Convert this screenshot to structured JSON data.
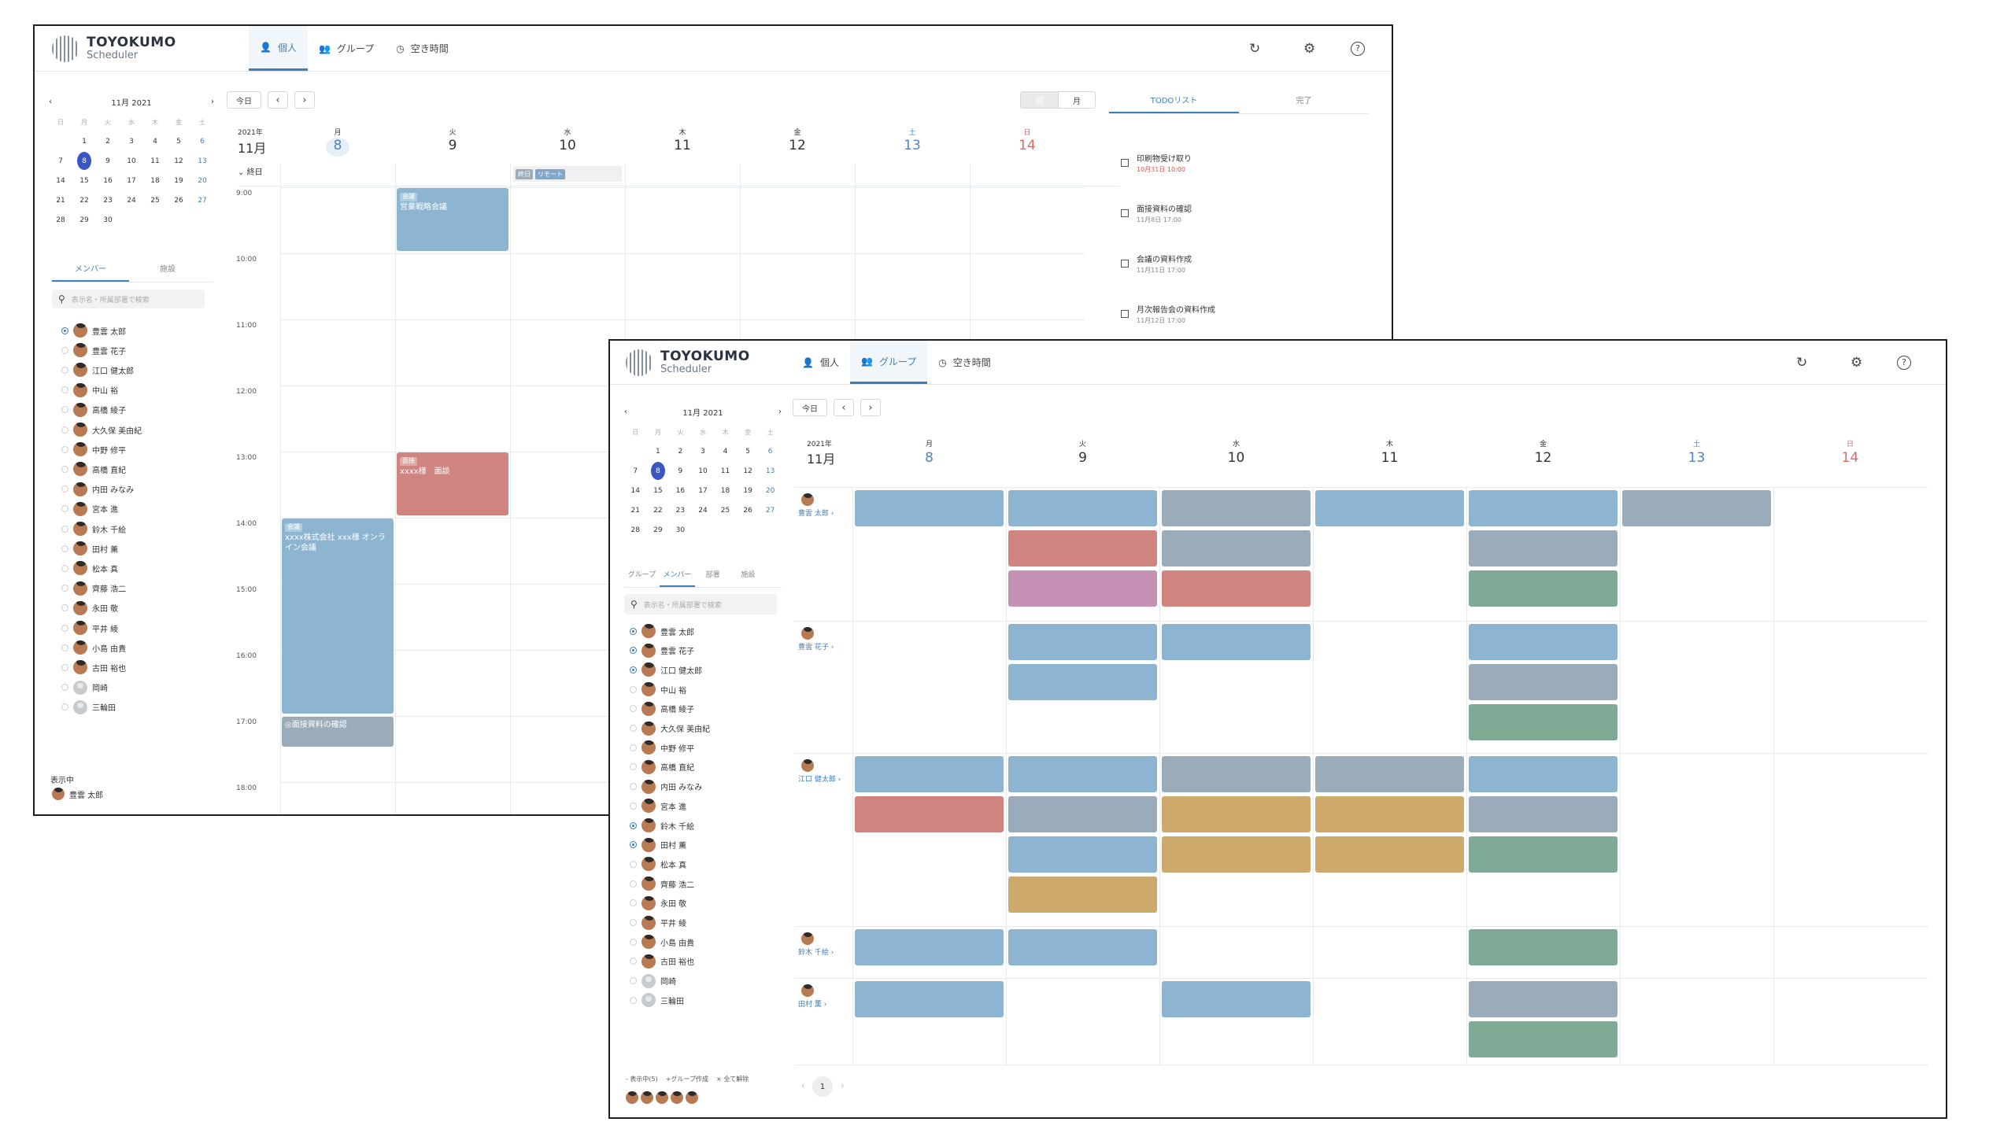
{
  "w1": {
    "logo": {
      "t1": "TOYOKUMO",
      "t2": "Scheduler"
    },
    "nav": [
      {
        "label": "個人"
      },
      {
        "label": "グループ"
      },
      {
        "label": "空き時間"
      }
    ],
    "month": "11月 2021",
    "weekdays": [
      "日",
      "月",
      "火",
      "水",
      "木",
      "金",
      "土"
    ],
    "days": [
      [
        "",
        "1",
        "2",
        "3",
        "4",
        "5",
        "6"
      ],
      [
        "7",
        "8",
        "9",
        "10",
        "11",
        "12",
        "13"
      ],
      [
        "14",
        "15",
        "16",
        "17",
        "18",
        "19",
        "20"
      ],
      [
        "21",
        "22",
        "23",
        "24",
        "25",
        "26",
        "27"
      ],
      [
        "28",
        "29",
        "30",
        "",
        "",
        "",
        ""
      ]
    ],
    "subtabs": [
      "メンバー",
      "施設"
    ],
    "search_placeholder": "表示名・所属部署で検索",
    "members": [
      "豊雲 太郎",
      "豊雲 花子",
      "江口 健太郎",
      "中山 裕",
      "高橋 綾子",
      "大久保 美由紀",
      "中野 修平",
      "高橋 直紀",
      "内田 みなみ",
      "宮本 進",
      "鈴木 千絵",
      "田村 薫",
      "松本 真",
      "齊藤 浩二",
      "永田 敬",
      "平井 綾",
      "小島 由貴",
      "古田 裕也",
      "岡崎",
      "三輪田"
    ],
    "showing_label": "表示中",
    "showing_member": "豊雲 太郎",
    "today": "今日",
    "week": "週",
    "monthbtn": "月",
    "year": "2021年",
    "mon": "11月",
    "allday": "終日",
    "cols": [
      {
        "w": "月",
        "d": "8"
      },
      {
        "w": "火",
        "d": "9"
      },
      {
        "w": "水",
        "d": "10"
      },
      {
        "w": "木",
        "d": "11"
      },
      {
        "w": "金",
        "d": "12"
      },
      {
        "w": "土",
        "d": "13"
      },
      {
        "w": "日",
        "d": "14"
      }
    ],
    "times": [
      "9:00",
      "10:00",
      "11:00",
      "12:00",
      "13:00",
      "14:00",
      "15:00",
      "16:00",
      "17:00",
      "18:00"
    ],
    "allday_tags": [
      "終日",
      "リモート"
    ],
    "events": [
      {
        "tag": "会議",
        "title": "営業戦略会議"
      },
      {
        "tag": "面接",
        "title": "xxxx様　面談"
      },
      {
        "tag": "会議",
        "title": "xxxx株式会社 xxx様 オンライン会議"
      },
      {
        "tag": "",
        "title": "◎面接資料の確認"
      }
    ],
    "todo_tabs": [
      "TODOリスト",
      "完了"
    ],
    "todos": [
      {
        "t": "印刷物受け取り",
        "d": "10月31日 10:00"
      },
      {
        "t": "面接資料の確認",
        "d": "11月8日 17:00"
      },
      {
        "t": "会議の資料作成",
        "d": "11月11日 17:00"
      },
      {
        "t": "月次報告会の資料作成",
        "d": "11月12日 17:00"
      }
    ]
  },
  "w2": {
    "logo": {
      "t1": "TOYOKUMO",
      "t2": "Scheduler"
    },
    "nav": [
      {
        "label": "個人"
      },
      {
        "label": "グループ"
      },
      {
        "label": "空き時間"
      }
    ],
    "month": "11月 2021",
    "weekdays": [
      "日",
      "月",
      "火",
      "水",
      "木",
      "金",
      "土"
    ],
    "days": [
      [
        "",
        "1",
        "2",
        "3",
        "4",
        "5",
        "6"
      ],
      [
        "7",
        "8",
        "9",
        "10",
        "11",
        "12",
        "13"
      ],
      [
        "14",
        "15",
        "16",
        "17",
        "18",
        "19",
        "20"
      ],
      [
        "21",
        "22",
        "23",
        "24",
        "25",
        "26",
        "27"
      ],
      [
        "28",
        "29",
        "30",
        "",
        "",
        "",
        ""
      ]
    ],
    "subtabs": [
      "グループ",
      "メンバー",
      "部署",
      "施設"
    ],
    "search_placeholder": "表示名・所属部署で検索",
    "members": [
      "豊雲 太郎",
      "豊雲 花子",
      "江口 健太郎",
      "中山 裕",
      "高橋 綾子",
      "大久保 美由紀",
      "中野 修平",
      "高橋 直紀",
      "内田 みなみ",
      "宮本 進",
      "鈴木 千絵",
      "田村 薫",
      "松本 真",
      "齊藤 浩二",
      "永田 敬",
      "平井 綾",
      "小島 由貴",
      "古田 裕也",
      "岡崎",
      "三輪田"
    ],
    "footer": {
      "showing": "- 表示中(5)",
      "create": "+グループ作成",
      "clear": "× 全て解除"
    },
    "today": "今日",
    "year": "2021年",
    "mon": "11月",
    "cols": [
      {
        "w": "月",
        "d": "8"
      },
      {
        "w": "火",
        "d": "9"
      },
      {
        "w": "水",
        "d": "10"
      },
      {
        "w": "木",
        "d": "11"
      },
      {
        "w": "金",
        "d": "12"
      },
      {
        "w": "土",
        "d": "13"
      },
      {
        "w": "日",
        "d": "14"
      }
    ],
    "rows": [
      {
        "name": "豊雲 太郎 ›"
      },
      {
        "name": "豊雲 花子 ›"
      },
      {
        "name": "江口 健太郎 ›"
      },
      {
        "name": "鈴木 千絵 ›"
      },
      {
        "name": "田村 薫 ›"
      }
    ],
    "page": "1"
  }
}
